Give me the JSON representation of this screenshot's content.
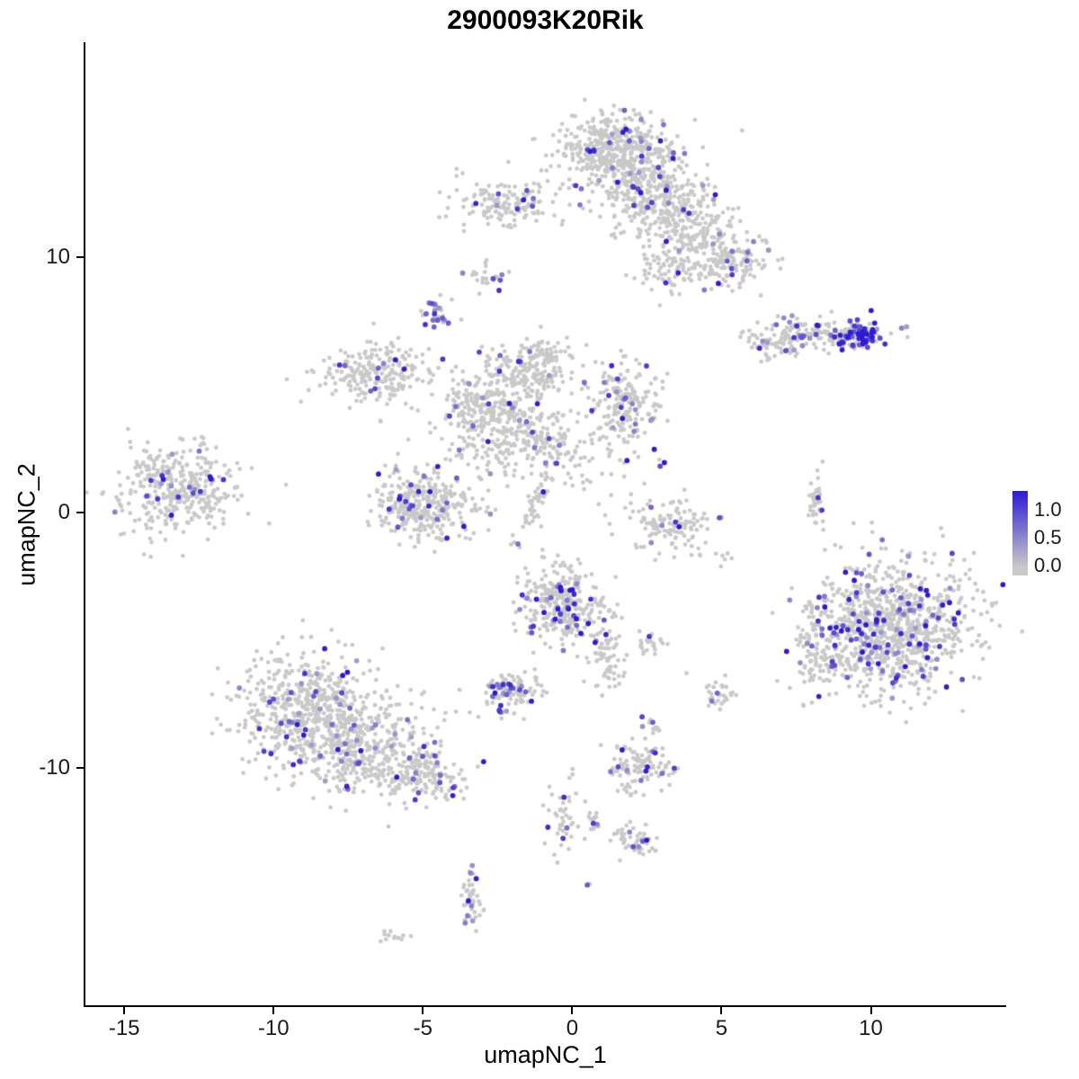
{
  "chart_data": {
    "type": "scatter",
    "title": "2900093K20Rik",
    "xlabel": "umapNC_1",
    "ylabel": "umapNC_2",
    "xlim": [
      -16.3,
      14.5
    ],
    "ylim": [
      -19.3,
      18.4
    ],
    "x_ticks": [
      "-15",
      "-10",
      "-5",
      "0",
      "5",
      "10"
    ],
    "x_tick_values": [
      -15,
      -10,
      -5,
      0,
      5,
      10
    ],
    "y_ticks": [
      "10",
      "0",
      "-10"
    ],
    "y_tick_values": [
      10,
      0,
      -10
    ],
    "grid": "off",
    "legend": {
      "position": "right",
      "labels": [
        "1.0",
        "0.5",
        "0.0"
      ],
      "values": [
        1.0,
        0.5,
        0.0
      ]
    },
    "colors": {
      "low": "#c9c9c9",
      "high": "#2d1bd2"
    },
    "point_radius_px": 2.4,
    "seed": 42,
    "clusters": [
      {
        "x": 1.4,
        "y": 14.2,
        "sx": 1.0,
        "sy": 0.7,
        "n": 420,
        "frac": 0.07
      },
      {
        "x": 2.5,
        "y": 12.6,
        "sx": 0.9,
        "sy": 0.8,
        "n": 300,
        "frac": 0.07
      },
      {
        "x": 3.9,
        "y": 11.2,
        "sx": 0.8,
        "sy": 0.7,
        "n": 190,
        "frac": 0.06
      },
      {
        "x": 5.1,
        "y": 9.8,
        "sx": 0.7,
        "sy": 0.55,
        "n": 150,
        "frac": 0.09
      },
      {
        "x": 3.3,
        "y": 9.4,
        "sx": 0.7,
        "sy": 0.5,
        "n": 70,
        "frac": 0.04
      },
      {
        "x": -2.1,
        "y": 12.1,
        "sx": 0.85,
        "sy": 0.5,
        "n": 150,
        "frac": 0.05
      },
      {
        "x": -2.9,
        "y": 9.3,
        "sx": 0.3,
        "sy": 0.25,
        "n": 26,
        "frac": 0.12
      },
      {
        "x": -4.6,
        "y": 7.8,
        "sx": 0.22,
        "sy": 0.33,
        "n": 32,
        "frac": 0.5,
        "vmin": 0.3,
        "vmax": 0.9
      },
      {
        "x": 8.1,
        "y": 7.0,
        "sx": 1.1,
        "sy": 0.3,
        "n": 150,
        "frac": 0.15
      },
      {
        "x": 9.7,
        "y": 6.9,
        "sx": 0.4,
        "sy": 0.26,
        "n": 70,
        "frac": 0.72,
        "vmin": 0.6,
        "vmax": 1.3
      },
      {
        "x": 6.9,
        "y": 6.4,
        "sx": 0.45,
        "sy": 0.25,
        "n": 40,
        "frac": 0.08
      },
      {
        "x": -6.6,
        "y": 5.5,
        "sx": 0.95,
        "sy": 0.6,
        "n": 230,
        "frac": 0.05
      },
      {
        "x": -1.3,
        "y": 5.6,
        "sx": 0.75,
        "sy": 0.55,
        "n": 200,
        "frac": 0.05
      },
      {
        "x": 1.8,
        "y": 4.3,
        "sx": 0.65,
        "sy": 0.75,
        "n": 190,
        "frac": 0.11
      },
      {
        "x": -3.1,
        "y": 4.3,
        "sx": 0.85,
        "sy": 0.6,
        "n": 190,
        "frac": 0.04
      },
      {
        "x": -2.1,
        "y": 3.0,
        "sx": 1.05,
        "sy": 0.8,
        "n": 260,
        "frac": 0.05
      },
      {
        "x": -1.15,
        "y": 0.5,
        "sx": 0.16,
        "sy": 0.85,
        "n": 55,
        "frac": 0.02,
        "rot": -20
      },
      {
        "x": 0.3,
        "y": 2.3,
        "sx": 0.9,
        "sy": 0.8,
        "n": 70,
        "frac": 0.04
      },
      {
        "x": 3.0,
        "y": 1.8,
        "sx": 0.12,
        "sy": 0.12,
        "n": 3,
        "frac": 0.34
      },
      {
        "x": -13.2,
        "y": 0.9,
        "sx": 1.05,
        "sy": 0.85,
        "n": 360,
        "frac": 0.06
      },
      {
        "x": -4.9,
        "y": 0.3,
        "sx": 0.85,
        "sy": 0.75,
        "n": 330,
        "frac": 0.09
      },
      {
        "x": 3.3,
        "y": -0.5,
        "sx": 0.85,
        "sy": 0.5,
        "n": 130,
        "frac": 0.05
      },
      {
        "x": 8.15,
        "y": 0.5,
        "sx": 0.14,
        "sy": 0.55,
        "n": 40,
        "frac": 0.05
      },
      {
        "x": 10.7,
        "y": -4.5,
        "sx": 1.35,
        "sy": 1.3,
        "n": 950,
        "frac": 0.13,
        "vmax": 1.3
      },
      {
        "x": 8.3,
        "y": -5.2,
        "sx": 0.45,
        "sy": 0.95,
        "n": 90,
        "frac": 0.1
      },
      {
        "x": -0.4,
        "y": -3.5,
        "sx": 0.6,
        "sy": 0.75,
        "n": 300,
        "frac": 0.12,
        "vmax": 1.3
      },
      {
        "x": 1.2,
        "y": -5.6,
        "sx": 0.3,
        "sy": 0.8,
        "n": 80,
        "frac": 0.04
      },
      {
        "x": 2.6,
        "y": -5.1,
        "sx": 0.22,
        "sy": 0.22,
        "n": 25,
        "frac": 0.05
      },
      {
        "x": -2.1,
        "y": -7.0,
        "sx": 0.55,
        "sy": 0.38,
        "n": 100,
        "frac": 0.18
      },
      {
        "x": -8.8,
        "y": -7.8,
        "sx": 1.25,
        "sy": 1.2,
        "n": 560,
        "frac": 0.08
      },
      {
        "x": -6.9,
        "y": -9.3,
        "sx": 1.2,
        "sy": 0.9,
        "n": 360,
        "frac": 0.06
      },
      {
        "x": -4.9,
        "y": -10.3,
        "sx": 0.65,
        "sy": 0.5,
        "n": 130,
        "frac": 0.05
      },
      {
        "x": 4.9,
        "y": -7.1,
        "sx": 0.28,
        "sy": 0.38,
        "n": 32,
        "frac": 0.1
      },
      {
        "x": 2.6,
        "y": -8.4,
        "sx": 0.2,
        "sy": 0.15,
        "n": 10,
        "frac": 0.1
      },
      {
        "x": 5.0,
        "y": -1.9,
        "sx": 0.15,
        "sy": 0.3,
        "n": 6,
        "frac": 0.15
      },
      {
        "x": 2.3,
        "y": -9.9,
        "sx": 0.5,
        "sy": 0.55,
        "n": 115,
        "frac": 0.1
      },
      {
        "x": -0.3,
        "y": -11.8,
        "sx": 0.26,
        "sy": 0.75,
        "n": 48,
        "frac": 0.1
      },
      {
        "x": 0.7,
        "y": -12.1,
        "sx": 0.18,
        "sy": 0.18,
        "n": 14,
        "frac": 0.05
      },
      {
        "x": 2.2,
        "y": -12.8,
        "sx": 0.38,
        "sy": 0.3,
        "n": 48,
        "frac": 0.05
      },
      {
        "x": -3.35,
        "y": -15.0,
        "sx": 0.2,
        "sy": 0.6,
        "n": 42,
        "frac": 0.2
      },
      {
        "x": 0.55,
        "y": -14.6,
        "sx": 0.05,
        "sy": 0.05,
        "n": 2,
        "frac": 0.6,
        "vmin": 0.6,
        "vmax": 1.0
      },
      {
        "x": -5.9,
        "y": -16.7,
        "sx": 0.3,
        "sy": 0.12,
        "n": 14,
        "frac": 0.0
      }
    ]
  }
}
